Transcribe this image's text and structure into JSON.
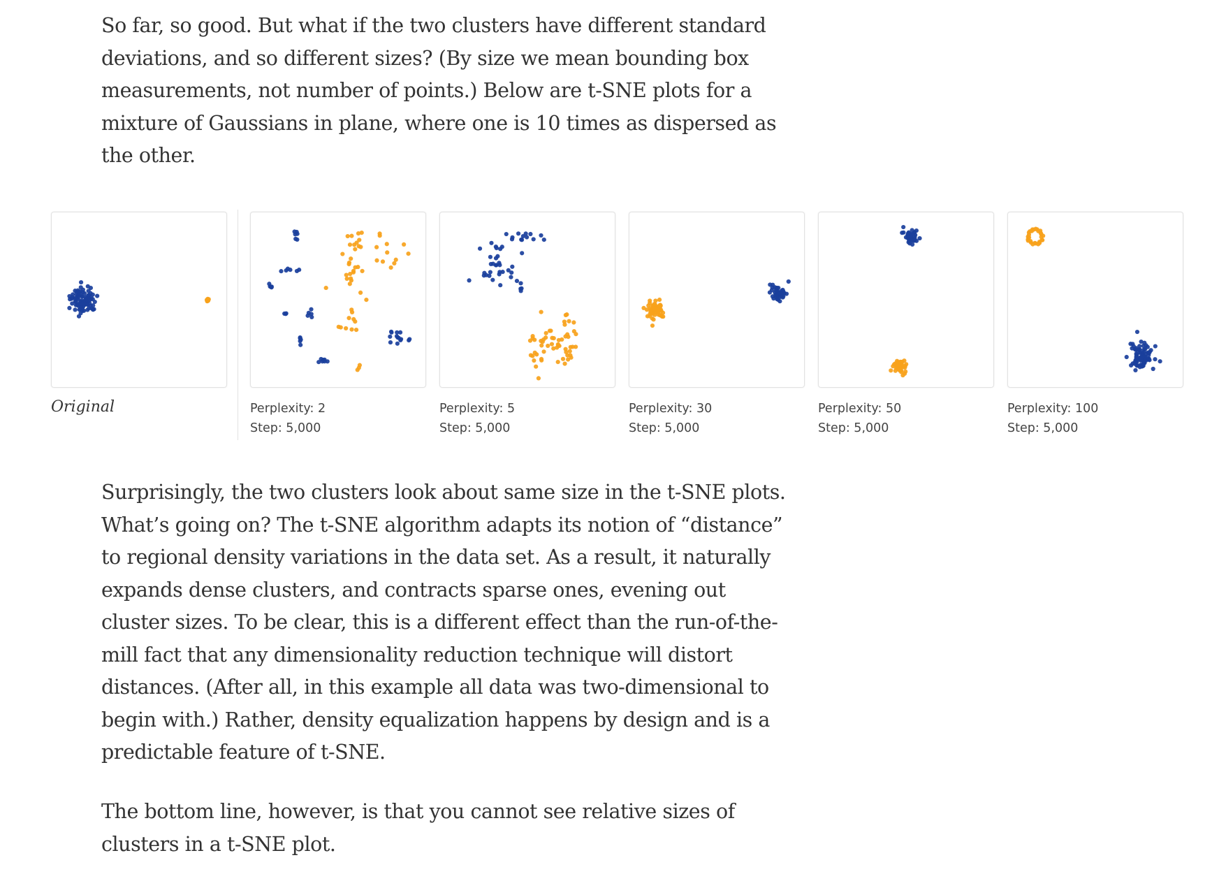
{
  "text": {
    "para1": "So far, so good. But what if the two clusters have different standard deviations, and so different sizes? (By size we mean bounding box measurements, not number of points.) Below are t-SNE plots for a mixture of Gaussians in plane, where one is 10 times as dispersed as the other.",
    "para2": "Surprisingly, the two clusters look about same size in the t-SNE plots. What’s going on? The t-SNE algorithm adapts its notion of “distance” to regional density variations in the data set. As a result, it naturally expands dense clusters, and contracts sparse ones, evening out cluster sizes. To be clear, this is a different effect than the run-of-the-mill fact that any dimensionality reduction technique will distort distances. (After all, in this example all data was two-dimensional to begin with.) Rather, density equalization happens by design and is a predictable feature of t-SNE.",
    "para3": "The bottom line, however, is that you cannot see relative sizes of clusters in a t-SNE plot."
  },
  "colors": {
    "blue": "#1a3f9c",
    "orange": "#f7a21b"
  },
  "chart_data": [
    {
      "type": "scatter",
      "caption": "Original",
      "xlim": [
        0,
        1
      ],
      "ylim": [
        0,
        1
      ],
      "series": [
        {
          "color": "blue",
          "clusters": [
            {
              "cx": 0.18,
              "cy": 0.5,
              "sx": 0.038,
              "sy": 0.038,
              "n": 90
            }
          ]
        },
        {
          "color": "orange",
          "clusters": [
            {
              "cx": 0.895,
              "cy": 0.5,
              "sx": 0.004,
              "sy": 0.004,
              "n": 12
            }
          ]
        }
      ]
    },
    {
      "type": "scatter",
      "perplexity_label": "Perplexity: 2",
      "step_label": "Step: 5,000",
      "xlim": [
        0,
        1
      ],
      "ylim": [
        0,
        1
      ],
      "series": [
        {
          "color": "blue",
          "clusters": [
            {
              "cx": 0.26,
              "cy": 0.14,
              "sx": 0.005,
              "sy": 0.02,
              "n": 6
            },
            {
              "cx": 0.22,
              "cy": 0.33,
              "sx": 0.03,
              "sy": 0.006,
              "n": 6
            },
            {
              "cx": 0.115,
              "cy": 0.43,
              "sx": 0.006,
              "sy": 0.015,
              "n": 5
            },
            {
              "cx": 0.19,
              "cy": 0.58,
              "sx": 0.01,
              "sy": 0.006,
              "n": 3
            },
            {
              "cx": 0.34,
              "cy": 0.57,
              "sx": 0.006,
              "sy": 0.02,
              "n": 5
            },
            {
              "cx": 0.28,
              "cy": 0.74,
              "sx": 0.006,
              "sy": 0.02,
              "n": 5
            },
            {
              "cx": 0.4,
              "cy": 0.85,
              "sx": 0.03,
              "sy": 0.006,
              "n": 7
            },
            {
              "cx": 0.85,
              "cy": 0.72,
              "sx": 0.05,
              "sy": 0.03,
              "n": 14
            }
          ]
        },
        {
          "color": "orange",
          "clusters": [
            {
              "cx": 0.62,
              "cy": 0.17,
              "sx": 0.03,
              "sy": 0.04,
              "n": 10
            },
            {
              "cx": 0.57,
              "cy": 0.34,
              "sx": 0.04,
              "sy": 0.08,
              "n": 18
            },
            {
              "cx": 0.79,
              "cy": 0.26,
              "sx": 0.05,
              "sy": 0.06,
              "n": 12
            },
            {
              "cx": 0.58,
              "cy": 0.58,
              "sx": 0.03,
              "sy": 0.04,
              "n": 8
            },
            {
              "cx": 0.52,
              "cy": 0.66,
              "sx": 0.02,
              "sy": 0.01,
              "n": 3
            },
            {
              "cx": 0.62,
              "cy": 0.89,
              "sx": 0.005,
              "sy": 0.01,
              "n": 3
            }
          ]
        }
      ]
    },
    {
      "type": "scatter",
      "perplexity_label": "Perplexity: 5",
      "step_label": "Step: 5,000",
      "xlim": [
        0,
        1
      ],
      "ylim": [
        0,
        1
      ],
      "series": [
        {
          "color": "blue",
          "clusters": [
            {
              "cx": 0.47,
              "cy": 0.14,
              "sx": 0.06,
              "sy": 0.02,
              "n": 12
            },
            {
              "cx": 0.33,
              "cy": 0.25,
              "sx": 0.05,
              "sy": 0.06,
              "n": 18
            },
            {
              "cx": 0.34,
              "cy": 0.38,
              "sx": 0.06,
              "sy": 0.04,
              "n": 16
            },
            {
              "cx": 0.47,
              "cy": 0.42,
              "sx": 0.02,
              "sy": 0.01,
              "n": 3
            }
          ]
        },
        {
          "color": "orange",
          "clusters": [
            {
              "cx": 0.63,
              "cy": 0.74,
              "sx": 0.05,
              "sy": 0.05,
              "n": 24
            },
            {
              "cx": 0.54,
              "cy": 0.84,
              "sx": 0.025,
              "sy": 0.05,
              "n": 10
            },
            {
              "cx": 0.74,
              "cy": 0.77,
              "sx": 0.04,
              "sy": 0.05,
              "n": 16
            },
            {
              "cx": 0.71,
              "cy": 0.64,
              "sx": 0.03,
              "sy": 0.03,
              "n": 8
            }
          ]
        }
      ]
    },
    {
      "type": "scatter",
      "perplexity_label": "Perplexity: 30",
      "step_label": "Step: 5,000",
      "xlim": [
        0,
        1
      ],
      "ylim": [
        0,
        1
      ],
      "series": [
        {
          "color": "blue",
          "clusters": [
            {
              "cx": 0.855,
              "cy": 0.46,
              "sx": 0.025,
              "sy": 0.025,
              "n": 45
            }
          ]
        },
        {
          "color": "orange",
          "clusters": [
            {
              "cx": 0.145,
              "cy": 0.55,
              "sx": 0.03,
              "sy": 0.03,
              "n": 55
            }
          ]
        }
      ]
    },
    {
      "type": "scatter",
      "perplexity_label": "Perplexity: 50",
      "step_label": "Step: 5,000",
      "xlim": [
        0,
        1
      ],
      "ylim": [
        0,
        1
      ],
      "series": [
        {
          "color": "blue",
          "clusters": [
            {
              "cx": 0.53,
              "cy": 0.135,
              "sx": 0.02,
              "sy": 0.02,
              "n": 40
            }
          ]
        },
        {
          "color": "orange",
          "clusters": [
            {
              "cx": 0.47,
              "cy": 0.885,
              "sx": 0.02,
              "sy": 0.02,
              "n": 40
            }
          ]
        }
      ]
    },
    {
      "type": "scatter",
      "perplexity_label": "Perplexity: 100",
      "step_label": "Step: 5,000",
      "xlim": [
        0,
        1
      ],
      "ylim": [
        0,
        1
      ],
      "series": [
        {
          "color": "blue",
          "clusters": [
            {
              "cx": 0.76,
              "cy": 0.825,
              "sx": 0.035,
              "sy": 0.035,
              "n": 90
            }
          ]
        },
        {
          "color": "orange",
          "clusters": [
            {
              "ring": true,
              "cx": 0.155,
              "cy": 0.14,
              "r": 0.04,
              "n": 28
            }
          ]
        }
      ]
    }
  ]
}
